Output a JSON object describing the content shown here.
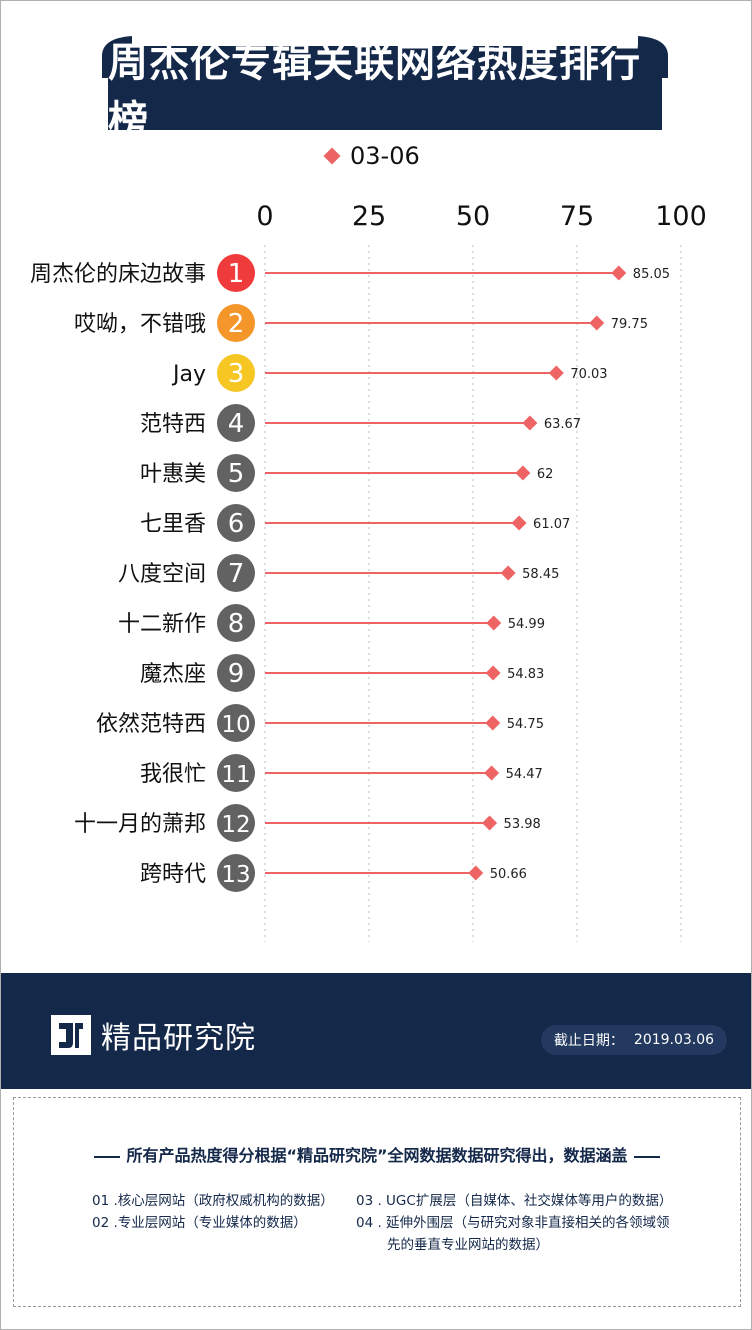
{
  "title": "周杰伦专辑关联网络热度排行榜",
  "legend_label": "03-06",
  "colors": {
    "navy": "#14284a",
    "accent": "#ee6464",
    "rank1": "#ef3b3b",
    "rank2": "#f5962a",
    "rank3": "#f6c623",
    "rank_other": "#626262"
  },
  "chart_data": {
    "type": "lollipop",
    "orientation": "horizontal",
    "xlim": [
      0,
      100
    ],
    "xticks": [
      "0",
      "25",
      "50",
      "75",
      "100"
    ],
    "grid": "vertical dotted",
    "legend_position": "top-center",
    "categories": [
      "周杰伦的床边故事",
      "哎呦，不错哦",
      "Jay",
      "范特西",
      "叶惠美",
      "七里香",
      "八度空间",
      "十二新作",
      "魔杰座",
      "依然范特西",
      "我很忙",
      "十一月的萧邦",
      "跨時代"
    ],
    "ranks": [
      "1",
      "2",
      "3",
      "4",
      "5",
      "6",
      "7",
      "8",
      "9",
      "10",
      "11",
      "12",
      "13"
    ],
    "series": [
      {
        "name": "03-06",
        "values": [
          85.05,
          79.75,
          70.03,
          63.67,
          62,
          61.07,
          58.45,
          54.99,
          54.83,
          54.75,
          54.47,
          53.98,
          50.66
        ],
        "labels": [
          "85.05",
          "79.75",
          "70.03",
          "63.67",
          "62",
          "61.07",
          "58.45",
          "54.99",
          "54.83",
          "54.75",
          "54.47",
          "53.98",
          "50.66"
        ]
      }
    ]
  },
  "footer": {
    "brand": "精品研究院",
    "date_label": "截止日期：",
    "date_value": "2019.03.06"
  },
  "notes": {
    "headline": "所有产品热度得分根据“精品研究院”全网数据数据研究得出，数据涵盖",
    "item1": "01 .核心层网站（政府权威机构的数据）",
    "item2": "02 .专业层网站（专业媒体的数据）",
    "item3": "03 . UGC扩展层（自媒体、社交媒体等用户的数据）",
    "item4_line1": "04 . 延伸外围层（与研究对象非直接相关的各领域领",
    "item4_line2": "先的垂直专业网站的数据）"
  }
}
